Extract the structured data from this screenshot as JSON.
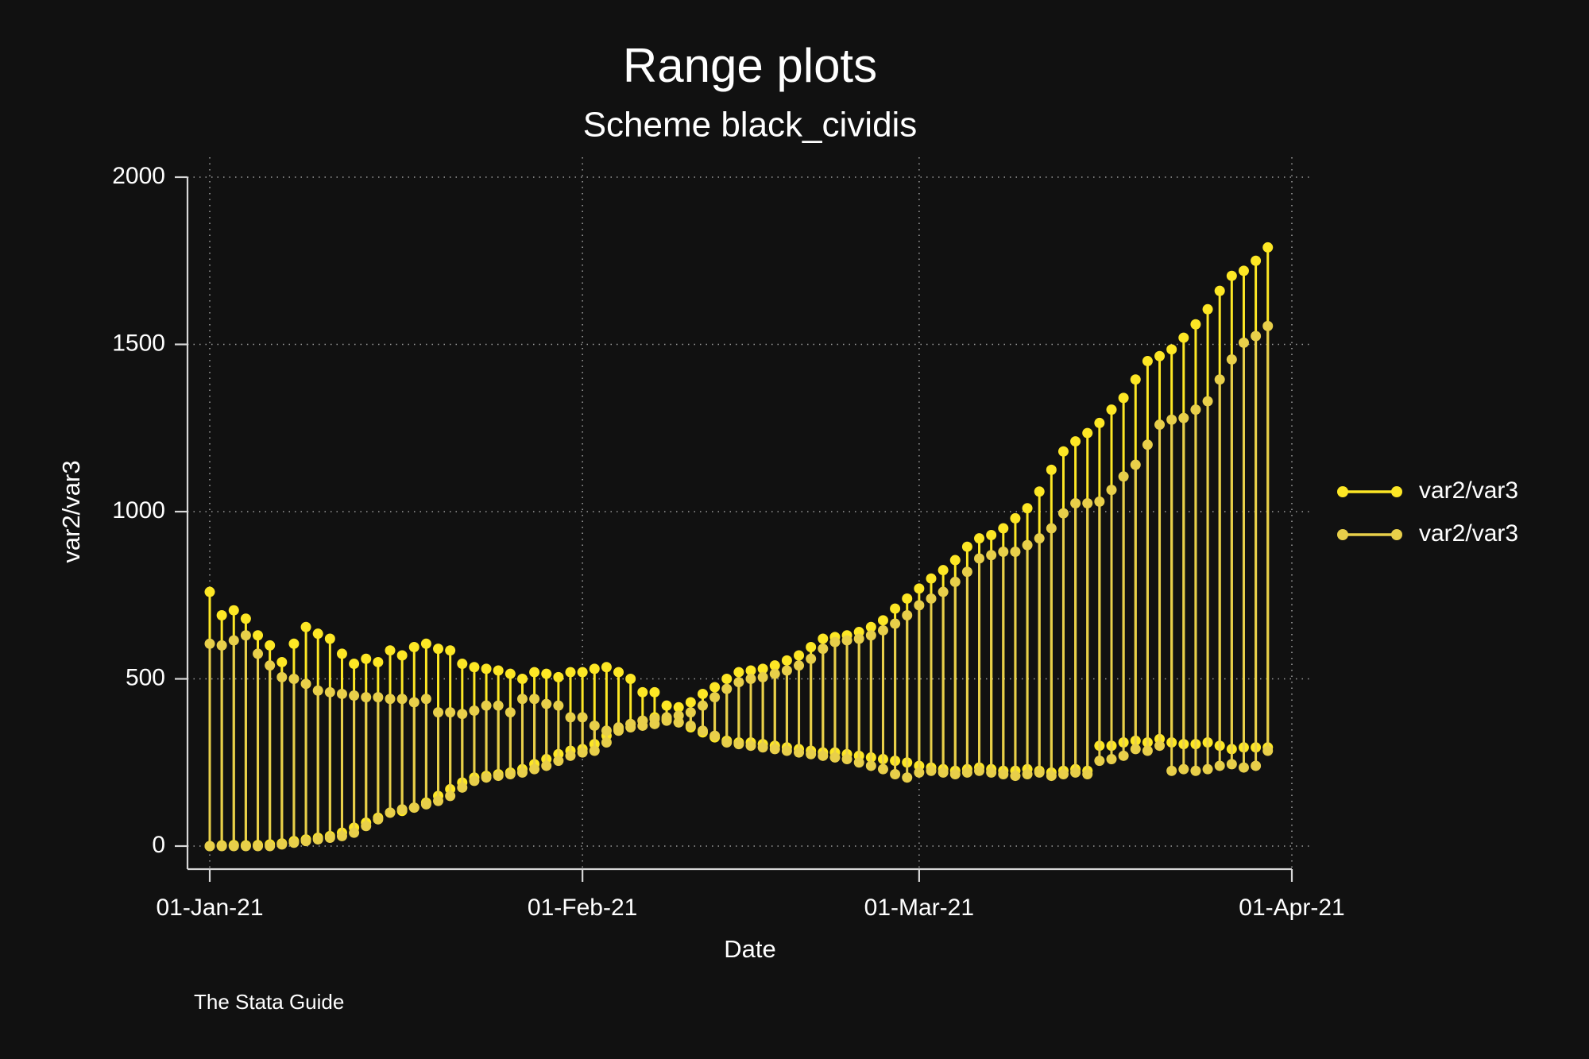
{
  "chart_data": {
    "type": "rcap",
    "title": "Range plots",
    "subtitle": "Scheme black_cividis",
    "x_label": "Date",
    "y_label": "var2/var3",
    "note": "The Stata Guide",
    "x": [
      "2021-01-01",
      "2021-01-02",
      "2021-01-03",
      "2021-01-04",
      "2021-01-05",
      "2021-01-06",
      "2021-01-07",
      "2021-01-08",
      "2021-01-09",
      "2021-01-10",
      "2021-01-11",
      "2021-01-12",
      "2021-01-13",
      "2021-01-14",
      "2021-01-15",
      "2021-01-16",
      "2021-01-17",
      "2021-01-18",
      "2021-01-19",
      "2021-01-20",
      "2021-01-21",
      "2021-01-22",
      "2021-01-23",
      "2021-01-24",
      "2021-01-25",
      "2021-01-26",
      "2021-01-27",
      "2021-01-28",
      "2021-01-29",
      "2021-01-30",
      "2021-01-31",
      "2021-02-01",
      "2021-02-02",
      "2021-02-03",
      "2021-02-04",
      "2021-02-05",
      "2021-02-06",
      "2021-02-07",
      "2021-02-08",
      "2021-02-09",
      "2021-02-10",
      "2021-02-11",
      "2021-02-12",
      "2021-02-13",
      "2021-02-14",
      "2021-02-15",
      "2021-02-16",
      "2021-02-17",
      "2021-02-18",
      "2021-02-19",
      "2021-02-20",
      "2021-02-21",
      "2021-02-22",
      "2021-02-23",
      "2021-02-24",
      "2021-02-25",
      "2021-02-26",
      "2021-02-27",
      "2021-02-28",
      "2021-03-01",
      "2021-03-02",
      "2021-03-03",
      "2021-03-04",
      "2021-03-05",
      "2021-03-06",
      "2021-03-07",
      "2021-03-08",
      "2021-03-09",
      "2021-03-10",
      "2021-03-11",
      "2021-03-12",
      "2021-03-13",
      "2021-03-14",
      "2021-03-15",
      "2021-03-16",
      "2021-03-17",
      "2021-03-18",
      "2021-03-19",
      "2021-03-20",
      "2021-03-21",
      "2021-03-22",
      "2021-03-23",
      "2021-03-24",
      "2021-03-25",
      "2021-03-26",
      "2021-03-27",
      "2021-03-28",
      "2021-03-29",
      "2021-03-30"
    ],
    "series": [
      {
        "name": "var2/var3",
        "color": "#fde725",
        "high": [
          760,
          690,
          705,
          680,
          630,
          600,
          550,
          605,
          655,
          635,
          620,
          575,
          545,
          560,
          550,
          585,
          570,
          595,
          605,
          590,
          585,
          545,
          535,
          530,
          525,
          515,
          500,
          520,
          515,
          505,
          520,
          520,
          530,
          535,
          520,
          500,
          460,
          460,
          420,
          415,
          430,
          455,
          475,
          500,
          520,
          525,
          530,
          540,
          555,
          570,
          595,
          620,
          625,
          630,
          640,
          655,
          675,
          710,
          740,
          770,
          800,
          825,
          855,
          895,
          920,
          930,
          950,
          980,
          1010,
          1060,
          1125,
          1180,
          1210,
          1235,
          1265,
          1305,
          1340,
          1395,
          1450,
          1465,
          1485,
          1520,
          1560,
          1605,
          1660,
          1705,
          1720,
          1750,
          1790
        ],
        "low": [
          0,
          2,
          3,
          2,
          3,
          5,
          8,
          15,
          20,
          25,
          30,
          40,
          55,
          70,
          85,
          100,
          105,
          115,
          130,
          150,
          170,
          190,
          205,
          210,
          215,
          220,
          230,
          245,
          260,
          275,
          285,
          290,
          305,
          330,
          350,
          365,
          375,
          385,
          380,
          370,
          355,
          340,
          325,
          315,
          310,
          310,
          305,
          300,
          295,
          290,
          285,
          280,
          280,
          275,
          270,
          265,
          260,
          255,
          250,
          240,
          235,
          230,
          225,
          230,
          235,
          230,
          225,
          225,
          230,
          225,
          220,
          225,
          230,
          225,
          300,
          300,
          310,
          315,
          310,
          320,
          310,
          305,
          305,
          310,
          300,
          290,
          295,
          295,
          295
        ]
      },
      {
        "name": "var2/var3",
        "color": "#e8cf4a",
        "high": [
          605,
          600,
          615,
          630,
          575,
          540,
          505,
          500,
          485,
          465,
          460,
          455,
          450,
          445,
          445,
          440,
          440,
          430,
          440,
          400,
          400,
          395,
          405,
          420,
          420,
          400,
          440,
          440,
          425,
          420,
          385,
          385,
          360,
          345,
          355,
          365,
          375,
          380,
          385,
          390,
          400,
          420,
          445,
          470,
          490,
          500,
          505,
          515,
          525,
          540,
          560,
          590,
          610,
          615,
          620,
          630,
          645,
          665,
          690,
          720,
          740,
          760,
          790,
          820,
          860,
          870,
          880,
          880,
          900,
          920,
          950,
          995,
          1025,
          1025,
          1030,
          1065,
          1105,
          1140,
          1200,
          1260,
          1275,
          1280,
          1305,
          1330,
          1395,
          1455,
          1505,
          1525,
          1555
        ],
        "low": [
          0,
          0,
          0,
          0,
          0,
          0,
          5,
          10,
          15,
          20,
          25,
          30,
          40,
          60,
          80,
          100,
          110,
          115,
          125,
          135,
          150,
          175,
          195,
          205,
          210,
          215,
          220,
          230,
          240,
          255,
          270,
          280,
          285,
          310,
          345,
          355,
          360,
          365,
          375,
          370,
          360,
          345,
          330,
          310,
          305,
          300,
          295,
          290,
          285,
          280,
          275,
          270,
          265,
          260,
          250,
          240,
          230,
          215,
          205,
          220,
          225,
          220,
          215,
          220,
          225,
          220,
          215,
          210,
          215,
          220,
          210,
          215,
          220,
          215,
          255,
          260,
          270,
          290,
          285,
          300,
          225,
          230,
          225,
          230,
          240,
          245,
          235,
          240,
          285
        ]
      }
    ],
    "xlim": [
      "2021-01-01",
      "2021-04-01"
    ],
    "xticks": [
      {
        "value": "2021-01-01",
        "label": "01-Jan-21"
      },
      {
        "value": "2021-02-01",
        "label": "01-Feb-21"
      },
      {
        "value": "2021-03-01",
        "label": "01-Mar-21"
      },
      {
        "value": "2021-04-01",
        "label": "01-Apr-21"
      }
    ],
    "ylim": [
      0,
      2000
    ],
    "yticks": [
      0,
      500,
      1000,
      1500,
      2000
    ],
    "grid": true
  }
}
